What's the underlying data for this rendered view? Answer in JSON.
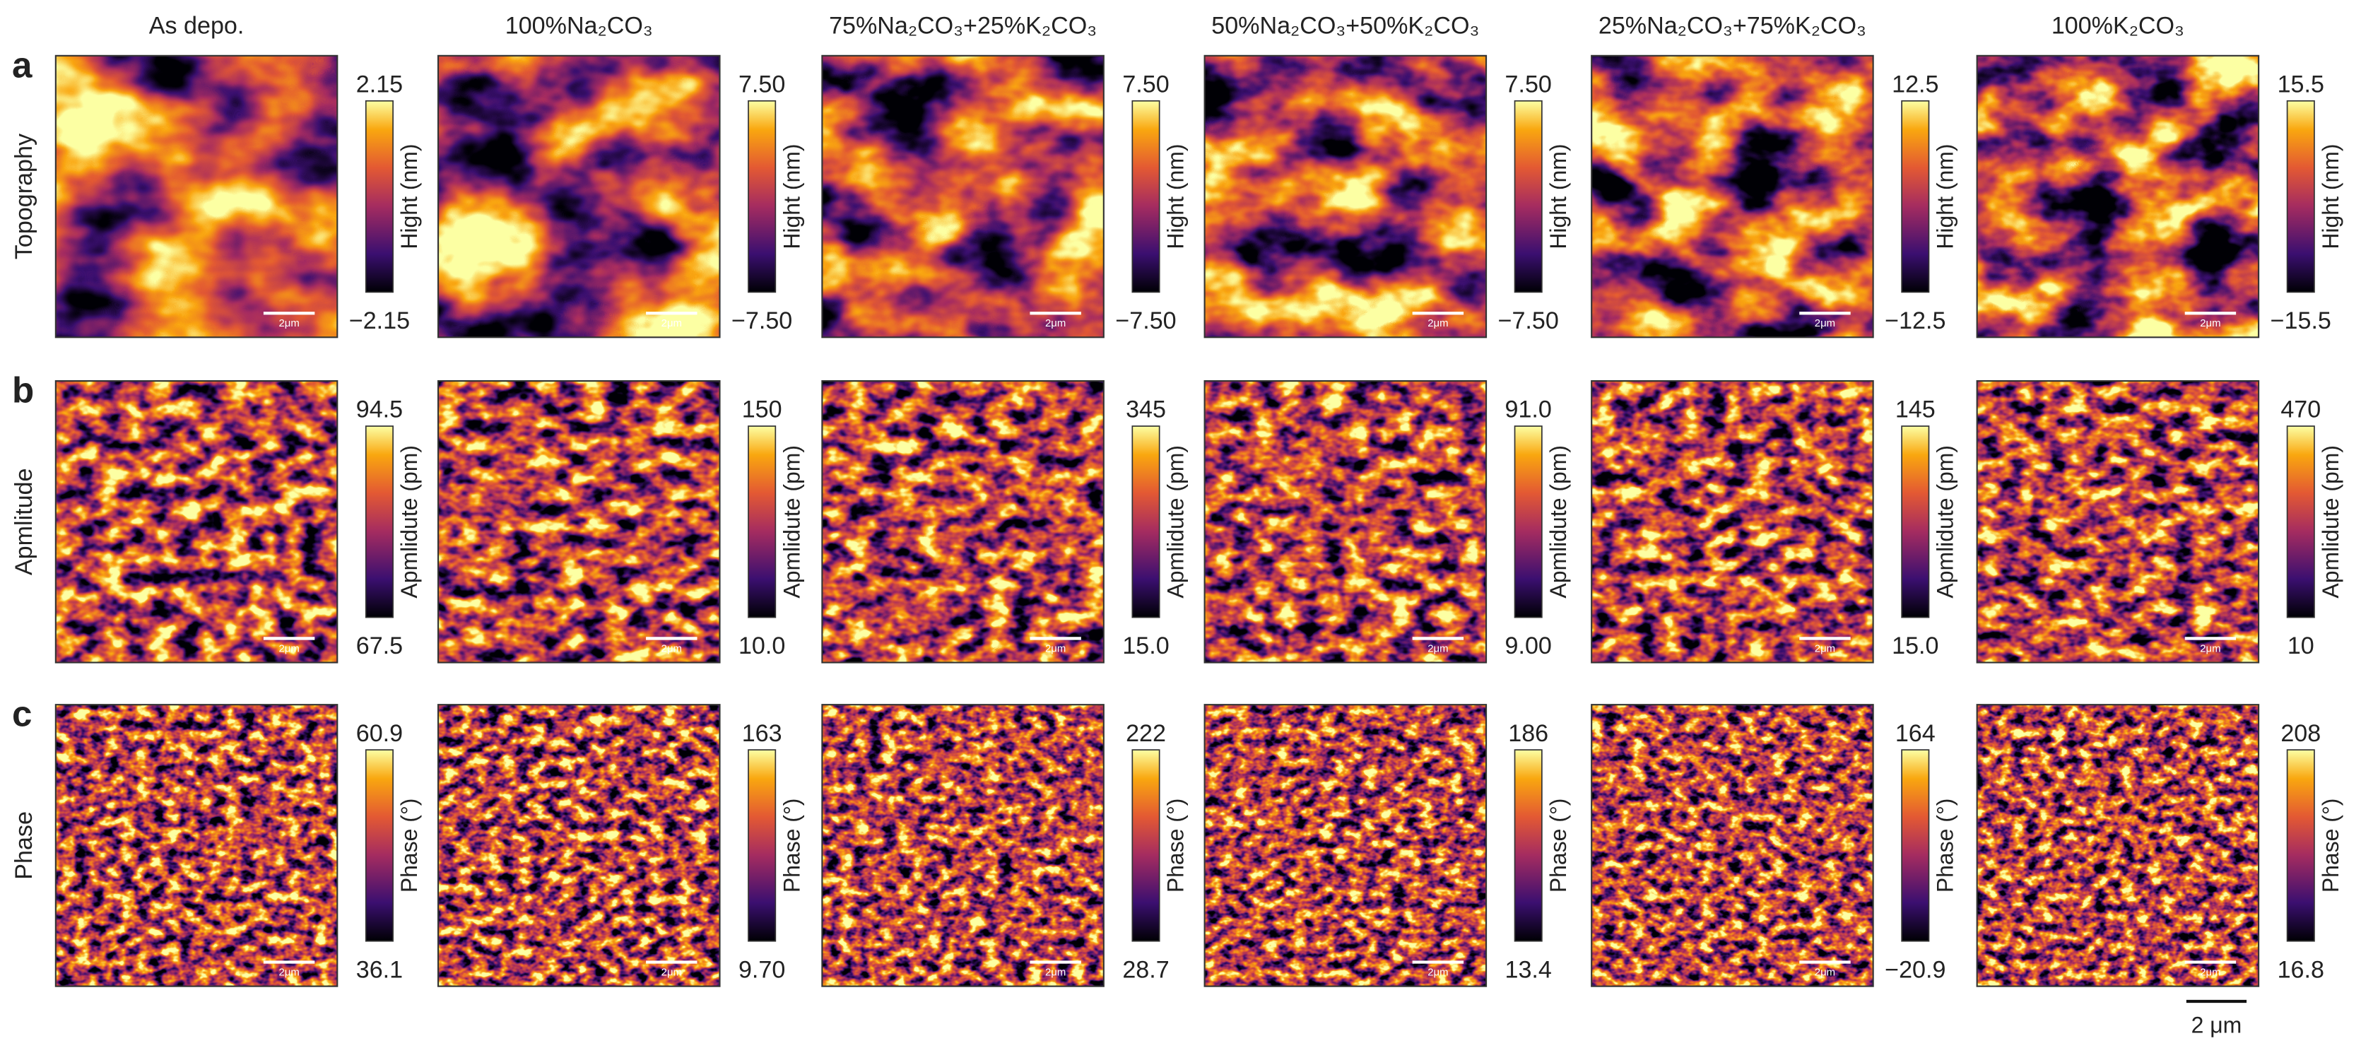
{
  "columns": [
    "As depo.",
    "100%Na₂CO₃",
    "75%Na₂CO₃+25%K₂CO₃",
    "50%Na₂CO₃+50%K₂CO₃",
    "25%Na₂CO₃+75%K₂CO₃",
    "100%K₂CO₃"
  ],
  "rows": [
    {
      "letter": "a",
      "label": "Topography",
      "colorbar_label": "Hight (nm)",
      "max": [
        "2.15",
        "7.50",
        "7.50",
        "7.50",
        "12.5",
        "15.5"
      ],
      "min": [
        "−2.15",
        "−7.50",
        "−7.50",
        "−7.50",
        "−12.5",
        "−15.5"
      ]
    },
    {
      "letter": "b",
      "label": "Apmlitude",
      "colorbar_label": "Apmlidute (pm)",
      "max": [
        "94.5",
        "150",
        "345",
        "91.0",
        "145",
        "470"
      ],
      "min": [
        "67.5",
        "10.0",
        "15.0",
        "9.00",
        "15.0",
        "10"
      ]
    },
    {
      "letter": "c",
      "label": "Phase",
      "colorbar_label": "Phase (°)",
      "max": [
        "60.9",
        "163",
        "222",
        "186",
        "164",
        "208"
      ],
      "min": [
        "36.1",
        "9.70",
        "28.7",
        "13.4",
        "−20.9",
        "16.8"
      ]
    }
  ],
  "panel_scale_bar": "2μm",
  "scale_bar": "2 μm"
}
